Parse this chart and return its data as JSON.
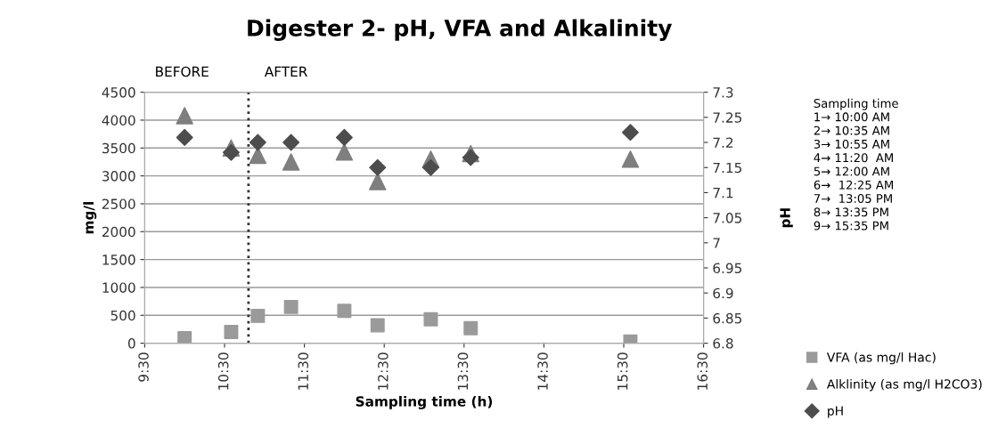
{
  "chart_data": {
    "type": "scatter",
    "title": "Digester 2- pH, VFA and Alkalinity",
    "xlabel": "Sampling time (h)",
    "ylabel": "mg/l",
    "y2label": "pH",
    "x": [
      10.0,
      10.583,
      10.917,
      11.333,
      12.0,
      12.417,
      13.083,
      13.583,
      15.583
    ],
    "series": [
      {
        "name": "VFA (as mg/l Hac)",
        "color": "#9a9a9a",
        "marker": "square",
        "values": [
          90,
          200,
          490,
          650,
          580,
          320,
          430,
          270,
          30
        ]
      },
      {
        "name": "Alklinity (as mg/l H2CO3)",
        "color": "#7f7f7f",
        "marker": "triangle",
        "values": [
          4080,
          3500,
          3370,
          3250,
          3430,
          2900,
          3300,
          3400,
          3300
        ]
      },
      {
        "name": "pH",
        "color": "#4d4d4d",
        "marker": "diamond",
        "axis": "y2",
        "values": [
          7.21,
          7.18,
          7.2,
          7.2,
          7.21,
          7.15,
          7.15,
          7.17,
          7.22
        ]
      }
    ],
    "xlim": [
      9.5,
      16.5
    ],
    "xticks": [
      {
        "value": 9.5,
        "label": "9:30"
      },
      {
        "value": 10.5,
        "label": "10:30"
      },
      {
        "value": 11.5,
        "label": "11:30"
      },
      {
        "value": 12.5,
        "label": "12:30"
      },
      {
        "value": 13.5,
        "label": "13:30"
      },
      {
        "value": 14.5,
        "label": "14:30"
      },
      {
        "value": 15.5,
        "label": "15:30"
      },
      {
        "value": 16.5,
        "label": "16:30"
      }
    ],
    "ylim": [
      0,
      4500
    ],
    "yticks": [
      0,
      500,
      1000,
      1500,
      2000,
      2500,
      3000,
      3500,
      4000,
      4500
    ],
    "y2lim": [
      6.8,
      7.3
    ],
    "y2ticks": [
      6.8,
      6.85,
      6.9,
      6.95,
      7,
      7.05,
      7.1,
      7.15,
      7.2,
      7.25,
      7.3
    ],
    "ref_lines": [
      {
        "axis": "x",
        "value": 10.8,
        "color": "#333333",
        "line_style": "dotted"
      }
    ],
    "annotations": [
      "BEFORE",
      "AFTER",
      "Sampling time\n1→ 10:00 AM\n2→ 10:35 AM\n3→ 10:55 AM\n4→ 11:20  AM\n5→ 12:00 AM\n6→  12:25 AM\n7→  13:05 PM\n8→ 13:35 PM\n9→ 15:35 PM"
    ],
    "grid": "y",
    "legend": "bottom right"
  }
}
